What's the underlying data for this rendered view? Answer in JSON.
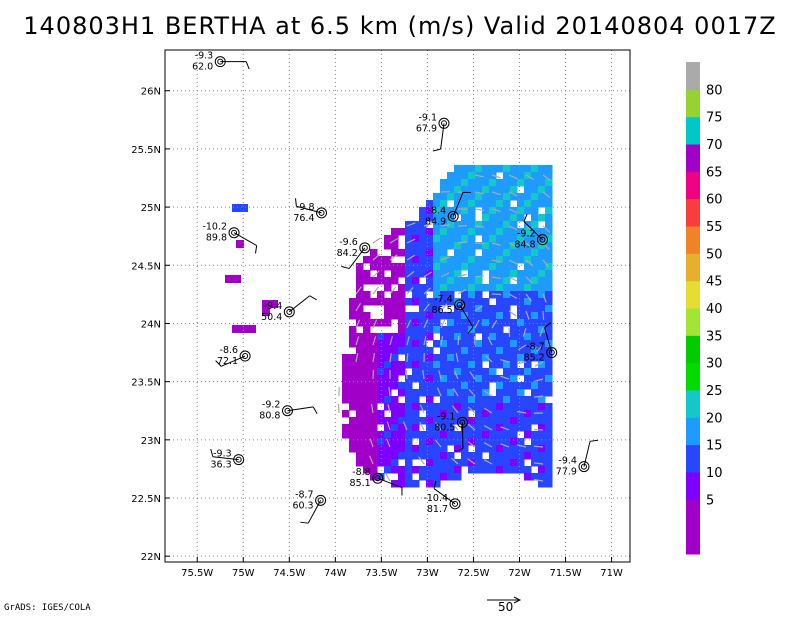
{
  "title": "140803H1 BERTHA at 6.5 km (m/s) Valid 20140804 0017Z",
  "credit": "GrADS: IGES/COLA",
  "vector_scale_label": "50",
  "chart_data": {
    "type": "scatter",
    "title": "140803H1 BERTHA at 6.5 km (m/s) Valid 20140804 0017Z",
    "xlim": [
      -75.85,
      -70.8
    ],
    "ylim": [
      21.95,
      26.35
    ],
    "grid": true,
    "x_ticks": [
      {
        "value": -75.5,
        "label": "75.5W"
      },
      {
        "value": -75.0,
        "label": "75W"
      },
      {
        "value": -74.5,
        "label": "74.5W"
      },
      {
        "value": -74.0,
        "label": "74W"
      },
      {
        "value": -73.5,
        "label": "73.5W"
      },
      {
        "value": -73.0,
        "label": "73W"
      },
      {
        "value": -72.5,
        "label": "72.5W"
      },
      {
        "value": -72.0,
        "label": "72W"
      },
      {
        "value": -71.5,
        "label": "71.5W"
      },
      {
        "value": -71.0,
        "label": "71W"
      }
    ],
    "y_ticks": [
      {
        "value": 22.0,
        "label": "22N"
      },
      {
        "value": 22.5,
        "label": "22.5N"
      },
      {
        "value": 23.0,
        "label": "23N"
      },
      {
        "value": 23.5,
        "label": "23.5N"
      },
      {
        "value": 24.0,
        "label": "24N"
      },
      {
        "value": 24.5,
        "label": "24.5N"
      },
      {
        "value": 25.0,
        "label": "25N"
      },
      {
        "value": 25.5,
        "label": "25.5N"
      },
      {
        "value": 26.0,
        "label": "26N"
      }
    ],
    "colorbar": {
      "levels": [
        {
          "label": "",
          "color": "#a000c8"
        },
        {
          "label": "5",
          "color": "#a000c8"
        },
        {
          "label": "10",
          "color": "#7d00ff"
        },
        {
          "label": "15",
          "color": "#2846ff"
        },
        {
          "label": "20",
          "color": "#1e9bff"
        },
        {
          "label": "25",
          "color": "#14c8c8"
        },
        {
          "label": "30",
          "color": "#00dc00"
        },
        {
          "label": "35",
          "color": "#00cc00"
        },
        {
          "label": "40",
          "color": "#a0e632"
        },
        {
          "label": "45",
          "color": "#e6dc32"
        },
        {
          "label": "50",
          "color": "#e6af2d"
        },
        {
          "label": "55",
          "color": "#f08228"
        },
        {
          "label": "60",
          "color": "#fa3c3c"
        },
        {
          "label": "65",
          "color": "#f00082"
        },
        {
          "label": "70",
          "color": "#a000c8"
        },
        {
          "label": "75",
          "color": "#00c8c8"
        },
        {
          "label": "80",
          "color": "#96d232"
        },
        {
          "label": "",
          "color": "#aaaaaa"
        }
      ]
    },
    "stations": [
      {
        "lon": -75.25,
        "lat": 26.25,
        "temp": "-9.3",
        "pres": "62.0"
      },
      {
        "lon": -72.82,
        "lat": 25.72,
        "temp": "-9.1",
        "pres": "67.9"
      },
      {
        "lon": -74.15,
        "lat": 24.95,
        "temp": "-9.8",
        "pres": "76.4"
      },
      {
        "lon": -72.72,
        "lat": 24.92,
        "temp": "-8.4",
        "pres": "84.9"
      },
      {
        "lon": -75.1,
        "lat": 24.78,
        "temp": "-10.2",
        "pres": "89.8"
      },
      {
        "lon": -73.68,
        "lat": 24.65,
        "temp": "-9.6",
        "pres": "84.2"
      },
      {
        "lon": -71.75,
        "lat": 24.72,
        "temp": "-9.2",
        "pres": "84.8"
      },
      {
        "lon": -74.5,
        "lat": 24.1,
        "temp": "-9.4",
        "pres": "50.4"
      },
      {
        "lon": -72.65,
        "lat": 24.16,
        "temp": "-7.4",
        "pres": "86.5"
      },
      {
        "lon": -74.98,
        "lat": 23.72,
        "temp": "-8.6",
        "pres": "72.1"
      },
      {
        "lon": -71.65,
        "lat": 23.75,
        "temp": "-8.7",
        "pres": "85.2"
      },
      {
        "lon": -74.52,
        "lat": 23.25,
        "temp": "-9.2",
        "pres": "80.8"
      },
      {
        "lon": -72.62,
        "lat": 23.15,
        "temp": "-9.1",
        "pres": "80.5"
      },
      {
        "lon": -75.05,
        "lat": 22.83,
        "temp": "-9.3",
        "pres": "36.3"
      },
      {
        "lon": -71.3,
        "lat": 22.77,
        "temp": "-9.4",
        "pres": "77.9"
      },
      {
        "lon": -73.54,
        "lat": 22.67,
        "temp": "-8.8",
        "pres": "85.1"
      },
      {
        "lon": -74.16,
        "lat": 22.48,
        "temp": "-8.7",
        "pres": "60.3"
      },
      {
        "lon": -72.7,
        "lat": 22.45,
        "temp": "-10.4",
        "pres": "81.7"
      }
    ]
  }
}
